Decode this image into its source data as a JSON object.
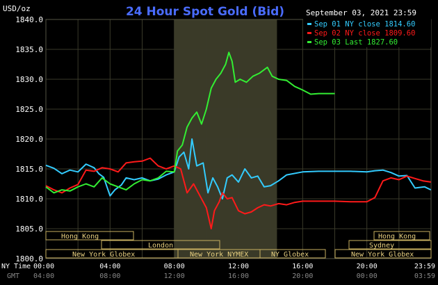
{
  "header": {
    "units": "USD/oz",
    "title": "24 Hour Spot Gold (Bid)",
    "datetime": "September 03, 2021 23:59"
  },
  "legend": [
    {
      "text": "Sep 01 NY close 1814.60",
      "color": "#33ccff"
    },
    {
      "text": "Sep 02 NY close 1809.60",
      "color": "#ff1a1a"
    },
    {
      "text": "Sep 03 Last 1827.60",
      "color": "#33ee33"
    }
  ],
  "axis": {
    "y_ticks": [
      "1840.0",
      "1835.0",
      "1830.0",
      "1825.0",
      "1820.0",
      "1815.0",
      "1810.0",
      "1805.0",
      "1800.0"
    ],
    "x_label_ny": "NY Time",
    "x_label_gmt": "GMT",
    "x_ticks_ny": [
      "00:00",
      "04:00",
      "08:00",
      "12:00",
      "16:00",
      "20:00",
      "23:59"
    ],
    "x_ticks_gmt": [
      "04:00",
      "08:00",
      "12:00",
      "16:00",
      "20:00",
      "00:00",
      "03:59"
    ]
  },
  "sessions": {
    "hong_kong_1": "Hong Kong",
    "london": "London",
    "new_york_globex_1": "New York Globex",
    "new_york_nymex": "New York NYMEX",
    "ny_globex": "NY Globex",
    "hong_kong_2": "Hong Kong",
    "sydney": "Sydney",
    "new_york_globex_2": "New York Globex"
  },
  "colors": {
    "title": "#4a6cff",
    "grid": "#3a3a2a",
    "frame": "#c8b060",
    "axis_text": "#ffffff",
    "gmt_text": "#888888",
    "session_text": "#e8d080",
    "highlight": "#3a3a28",
    "sep01": "#33ccff",
    "sep02": "#ff1a1a",
    "sep03": "#33ee33"
  },
  "chart_data": {
    "type": "line",
    "ylim": [
      1800,
      1840
    ],
    "xlim": [
      0,
      24
    ],
    "series": [
      {
        "name": "Sep 01 NY close 1814.60",
        "color": "#33ccff",
        "points": [
          [
            0,
            1815.6
          ],
          [
            0.5,
            1815.1
          ],
          [
            1,
            1814.2
          ],
          [
            1.5,
            1814.8
          ],
          [
            2,
            1814.5
          ],
          [
            2.5,
            1815.8
          ],
          [
            3,
            1815.2
          ],
          [
            3.3,
            1814.2
          ],
          [
            3.6,
            1813.6
          ],
          [
            4,
            1810.5
          ],
          [
            4.3,
            1811.5
          ],
          [
            4.7,
            1812.3
          ],
          [
            5,
            1813.5
          ],
          [
            5.5,
            1813.2
          ],
          [
            6,
            1813.5
          ],
          [
            6.5,
            1813.0
          ],
          [
            7,
            1813.3
          ],
          [
            7.5,
            1814.0
          ],
          [
            8,
            1814.5
          ],
          [
            8.3,
            1817.0
          ],
          [
            8.6,
            1817.8
          ],
          [
            8.9,
            1815.0
          ],
          [
            9.1,
            1820.0
          ],
          [
            9.4,
            1815.5
          ],
          [
            9.8,
            1816.0
          ],
          [
            10.1,
            1811.0
          ],
          [
            10.4,
            1813.5
          ],
          [
            10.7,
            1812.0
          ],
          [
            11.0,
            1810.0
          ],
          [
            11.3,
            1813.5
          ],
          [
            11.6,
            1814.0
          ],
          [
            12.0,
            1812.8
          ],
          [
            12.4,
            1815.0
          ],
          [
            12.8,
            1813.5
          ],
          [
            13.2,
            1813.8
          ],
          [
            13.6,
            1812.0
          ],
          [
            14.0,
            1812.2
          ],
          [
            14.5,
            1813.0
          ],
          [
            15.0,
            1814.0
          ],
          [
            16,
            1814.5
          ],
          [
            17,
            1814.6
          ],
          [
            18,
            1814.6
          ],
          [
            19,
            1814.6
          ],
          [
            20,
            1814.5
          ],
          [
            20.5,
            1814.7
          ],
          [
            21,
            1814.8
          ],
          [
            21.5,
            1814.4
          ],
          [
            22,
            1813.8
          ],
          [
            22.5,
            1813.9
          ],
          [
            23,
            1811.8
          ],
          [
            23.6,
            1812.0
          ],
          [
            23.99,
            1811.5
          ]
        ]
      },
      {
        "name": "Sep 02 NY close 1809.60",
        "color": "#ff1a1a",
        "points": [
          [
            0,
            1812.2
          ],
          [
            0.5,
            1811.5
          ],
          [
            1,
            1811.0
          ],
          [
            1.5,
            1811.8
          ],
          [
            2,
            1812.4
          ],
          [
            2.5,
            1814.8
          ],
          [
            3,
            1814.6
          ],
          [
            3.5,
            1815.2
          ],
          [
            4,
            1815.0
          ],
          [
            4.5,
            1814.5
          ],
          [
            5,
            1816.0
          ],
          [
            5.5,
            1816.2
          ],
          [
            6,
            1816.3
          ],
          [
            6.5,
            1816.8
          ],
          [
            7,
            1815.5
          ],
          [
            7.5,
            1815.0
          ],
          [
            8,
            1815.5
          ],
          [
            8.4,
            1815.0
          ],
          [
            8.8,
            1811.0
          ],
          [
            9.2,
            1812.5
          ],
          [
            9.6,
            1810.5
          ],
          [
            10.0,
            1808.5
          ],
          [
            10.3,
            1805.0
          ],
          [
            10.5,
            1808.0
          ],
          [
            10.8,
            1809.5
          ],
          [
            11.0,
            1811.0
          ],
          [
            11.3,
            1810.0
          ],
          [
            11.6,
            1810.2
          ],
          [
            12.0,
            1808.0
          ],
          [
            12.4,
            1807.5
          ],
          [
            12.8,
            1807.8
          ],
          [
            13.2,
            1808.5
          ],
          [
            13.6,
            1809.0
          ],
          [
            14.0,
            1808.8
          ],
          [
            14.5,
            1809.2
          ],
          [
            15.0,
            1809.0
          ],
          [
            15.5,
            1809.4
          ],
          [
            16,
            1809.6
          ],
          [
            17,
            1809.6
          ],
          [
            18,
            1809.6
          ],
          [
            19,
            1809.5
          ],
          [
            20,
            1809.5
          ],
          [
            20.5,
            1810.2
          ],
          [
            21,
            1813.0
          ],
          [
            21.5,
            1813.5
          ],
          [
            22,
            1813.2
          ],
          [
            22.5,
            1813.8
          ],
          [
            23,
            1813.4
          ],
          [
            23.5,
            1813.0
          ],
          [
            23.99,
            1812.8
          ]
        ]
      },
      {
        "name": "Sep 03 Last 1827.60",
        "color": "#33ee33",
        "points": [
          [
            0,
            1812.0
          ],
          [
            0.5,
            1811.0
          ],
          [
            1,
            1811.5
          ],
          [
            1.5,
            1811.3
          ],
          [
            2,
            1812.0
          ],
          [
            2.5,
            1812.5
          ],
          [
            3,
            1812.0
          ],
          [
            3.5,
            1813.5
          ],
          [
            4,
            1812.5
          ],
          [
            4.5,
            1812.0
          ],
          [
            5,
            1811.5
          ],
          [
            5.5,
            1812.5
          ],
          [
            6,
            1813.2
          ],
          [
            6.5,
            1813.0
          ],
          [
            7,
            1813.5
          ],
          [
            7.5,
            1814.6
          ],
          [
            8,
            1814.5
          ],
          [
            8.2,
            1818.0
          ],
          [
            8.5,
            1819.0
          ],
          [
            8.8,
            1822.0
          ],
          [
            9.1,
            1823.5
          ],
          [
            9.4,
            1824.5
          ],
          [
            9.7,
            1822.5
          ],
          [
            10.0,
            1825.0
          ],
          [
            10.3,
            1828.5
          ],
          [
            10.6,
            1830.0
          ],
          [
            10.9,
            1831.0
          ],
          [
            11.2,
            1832.5
          ],
          [
            11.4,
            1834.5
          ],
          [
            11.6,
            1833.0
          ],
          [
            11.8,
            1829.5
          ],
          [
            12.1,
            1830.0
          ],
          [
            12.5,
            1829.5
          ],
          [
            12.9,
            1830.5
          ],
          [
            13.3,
            1831.0
          ],
          [
            13.8,
            1832.0
          ],
          [
            14.1,
            1830.5
          ],
          [
            14.5,
            1830.0
          ],
          [
            15.0,
            1829.8
          ],
          [
            15.5,
            1828.8
          ],
          [
            16.0,
            1828.2
          ],
          [
            16.5,
            1827.5
          ],
          [
            17.0,
            1827.6
          ],
          [
            17.5,
            1827.6
          ],
          [
            18.0,
            1827.6
          ]
        ]
      }
    ]
  }
}
